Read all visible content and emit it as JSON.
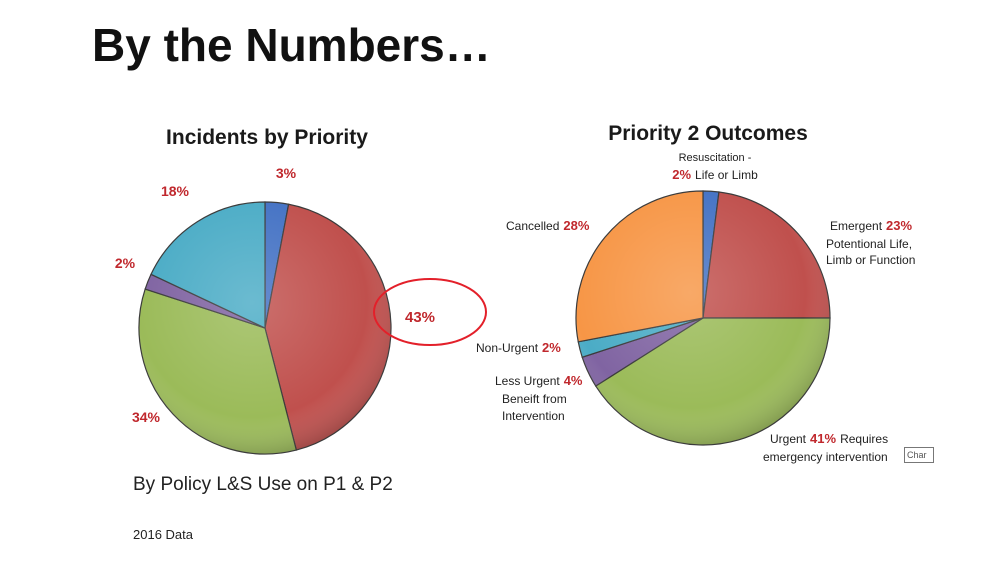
{
  "slide": {
    "title": "By the Numbers…",
    "footnote": "By Policy L&S Use on P1 & P2",
    "data_year": "2016 Data",
    "tooltip_tab": "Char"
  },
  "chart_data": [
    {
      "type": "pie",
      "title": "Incidents by Priority",
      "slices": [
        {
          "value": 3,
          "label": "3%",
          "color": "#4472c4"
        },
        {
          "value": 43,
          "label": "43%",
          "color": "#c0504d",
          "highlighted": true
        },
        {
          "value": 34,
          "label": "34%",
          "color": "#9bbb59"
        },
        {
          "value": 2,
          "label": "2%",
          "color": "#8064a2"
        },
        {
          "value": 18,
          "label": "18%",
          "color": "#4bacc6"
        }
      ],
      "highlight_color": "#e3202a"
    },
    {
      "type": "pie",
      "title": "Priority 2 Outcomes",
      "slices": [
        {
          "value": 2,
          "pct": "2%",
          "name_lines": [
            "Resuscitation -",
            "Life or Limb"
          ],
          "color": "#4472c4"
        },
        {
          "value": 23,
          "pct": "23%",
          "name_lines": [
            "Emergent",
            "Potentional Life,",
            "Limb or Function"
          ],
          "color": "#c0504d"
        },
        {
          "value": 41,
          "pct": "41%",
          "name_lines": [
            "Urgent",
            "Requires",
            "emergency intervention"
          ],
          "color": "#9bbb59"
        },
        {
          "value": 4,
          "pct": "4%",
          "name_lines": [
            "Less Urgent",
            "Beneift from",
            "Intervention"
          ],
          "color": "#8064a2"
        },
        {
          "value": 2,
          "pct": "2%",
          "name_lines": [
            "Non-Urgent"
          ],
          "color": "#4bacc6"
        },
        {
          "value": 28,
          "pct": "28%",
          "name_lines": [
            "Cancelled"
          ],
          "color": "#f79646"
        }
      ]
    }
  ]
}
